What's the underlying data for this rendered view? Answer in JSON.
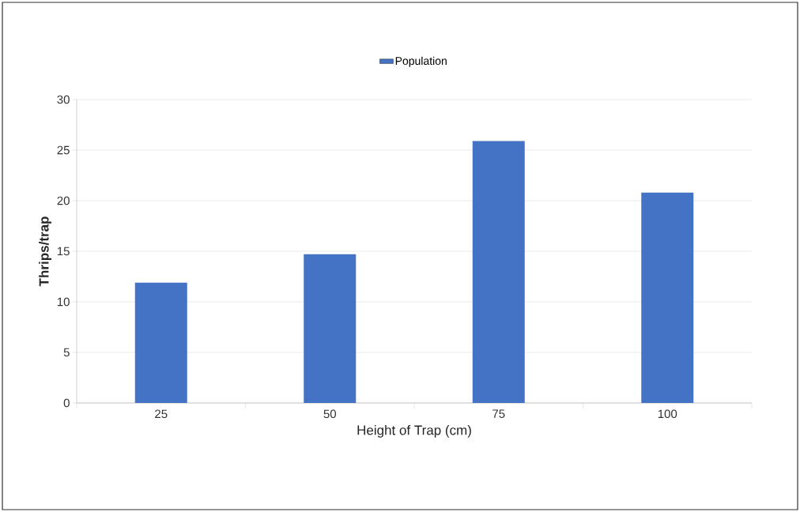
{
  "chart_data": {
    "type": "bar",
    "xlabel": "Height of Trap (cm)",
    "ylabel": "Thrips/trap",
    "categories": [
      "25",
      "50",
      "75",
      "100"
    ],
    "series": [
      {
        "name": "Population",
        "color": "#4472c4",
        "values": [
          11.9,
          14.7,
          25.9,
          20.8
        ]
      }
    ],
    "ylim": [
      0,
      30
    ],
    "yticks": [
      0,
      5,
      10,
      15,
      20,
      25,
      30
    ],
    "grid": "y",
    "legend": "top"
  }
}
